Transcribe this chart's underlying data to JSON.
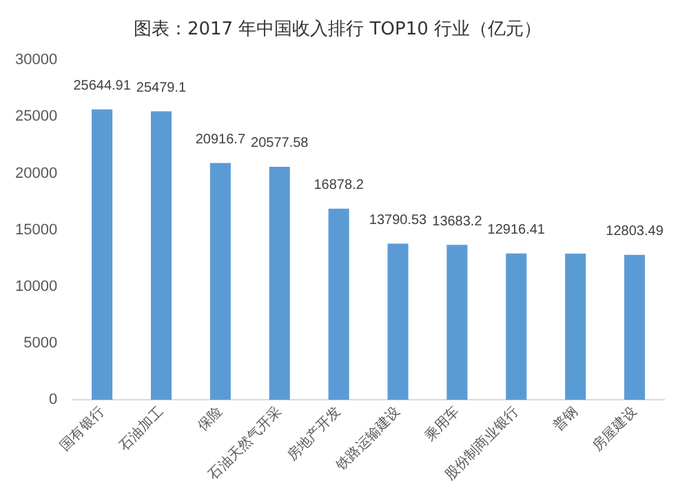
{
  "chart_data": {
    "type": "bar",
    "title": "图表：2017 年中国收入排行 TOP10 行业（亿元）",
    "categories": [
      "国有银行",
      "石油加工",
      "保险",
      "石油天然气开采",
      "房地产开发",
      "铁路运输建设",
      "乘用车",
      "股份制商业银行",
      "普钢",
      "房屋建设"
    ],
    "values": [
      25644.91,
      25479.1,
      20916.7,
      20577.58,
      16878.2,
      13790.53,
      13683.2,
      12916.41,
      12900,
      12803.49
    ],
    "value_labels": [
      "25644.91",
      "25479.1",
      "20916.7",
      "20577.58",
      "16878.2",
      "13790.53",
      "13683.2",
      "12916.41",
      null,
      "12803.49"
    ],
    "color": "#5b9bd5",
    "ylim": [
      0,
      30000
    ],
    "yticks": [
      0,
      5000,
      10000,
      15000,
      20000,
      25000,
      30000
    ],
    "grid": false
  }
}
